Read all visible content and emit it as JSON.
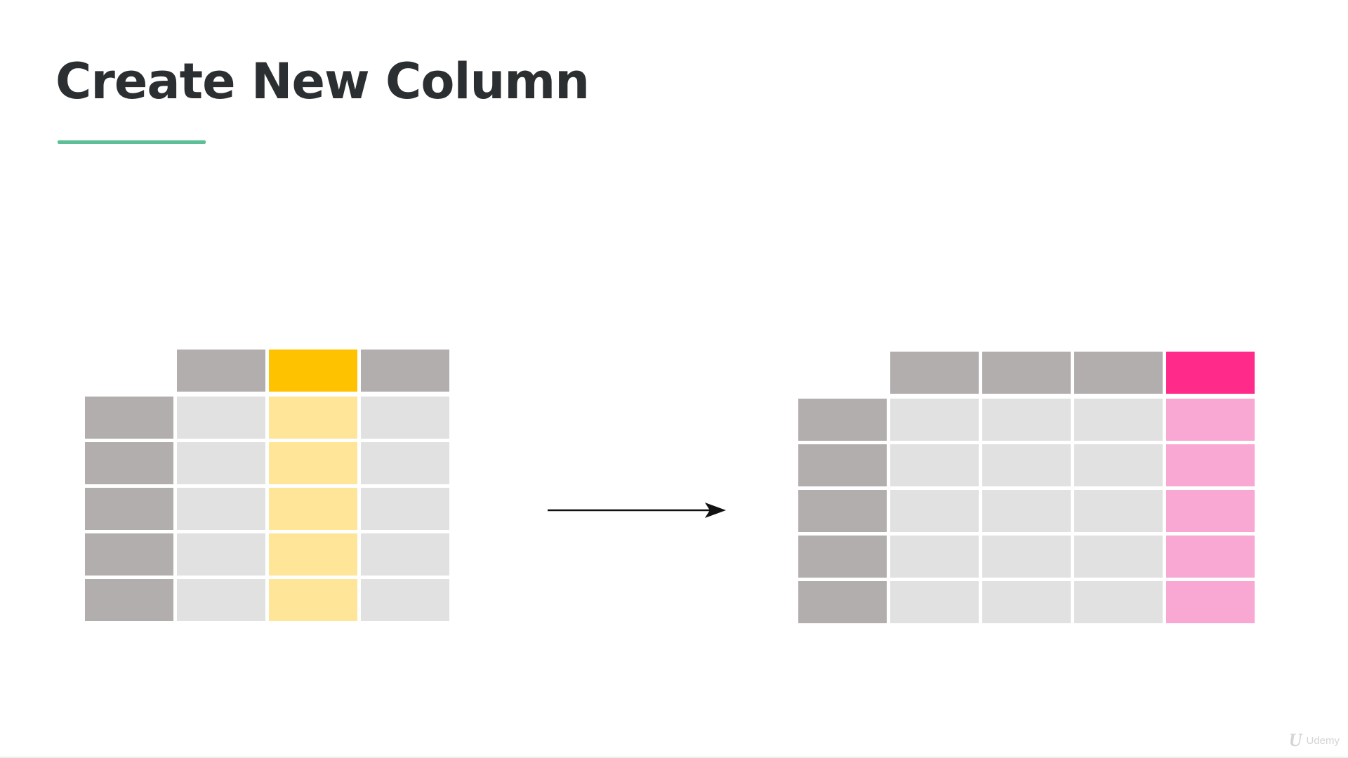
{
  "slide": {
    "title": "Create New Column"
  },
  "colors": {
    "title_text": "#2b2f31",
    "accent_underline": "#5dbf97",
    "index_cell": "#b3aeae",
    "header_cell": "#b3aeae",
    "data_cell": "#e1e1e1",
    "source_header": "#ffc200",
    "source_cell": "#fee598",
    "new_header": "#ff2a8a",
    "new_cell": "#f8a8d2",
    "arrow": "#111111"
  },
  "diagram": {
    "before_table": {
      "columns": 3,
      "rows": 5,
      "highlighted_column": 2
    },
    "after_table": {
      "columns": 4,
      "rows": 5,
      "new_column": 4
    }
  },
  "watermark": {
    "logo": "U",
    "text": "Udemy"
  }
}
